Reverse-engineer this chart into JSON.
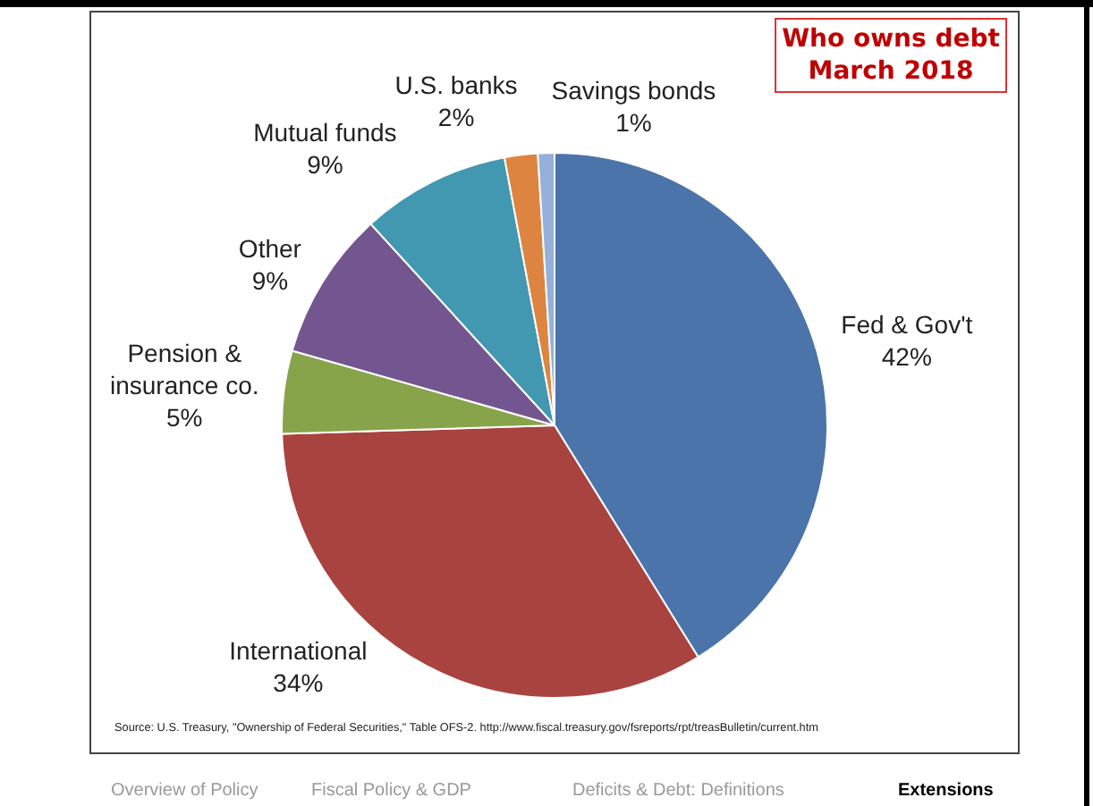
{
  "chart_data": {
    "type": "pie",
    "title": "Who owns debt March 2018",
    "categories": [
      "Fed & Gov't",
      "International",
      "Pension & insurance co.",
      "Other",
      "Mutual funds",
      "U.S. banks",
      "Savings bonds"
    ],
    "values": [
      42,
      34,
      5,
      9,
      9,
      2,
      1
    ],
    "value_labels": [
      "42%",
      "34%",
      "5%",
      "9%",
      "9%",
      "2%",
      "1%"
    ],
    "colors": [
      "#4a74aa",
      "#a9433f",
      "#87a44b",
      "#73568f",
      "#4298b0",
      "#dd8540",
      "#95b0d9"
    ],
    "legend": false,
    "annotations": [
      "Source:  U.S. Treasury, \"Ownership of Federal Securities,\" Table OFS-2.  http://www.fiscal.treasury.gov/fsreports/rpt/treasBulletin/current.htm",
      "Overview of Policy",
      "Fiscal Policy & GDP",
      "Deficits & Debt: Definitions",
      "Extensions"
    ]
  }
}
